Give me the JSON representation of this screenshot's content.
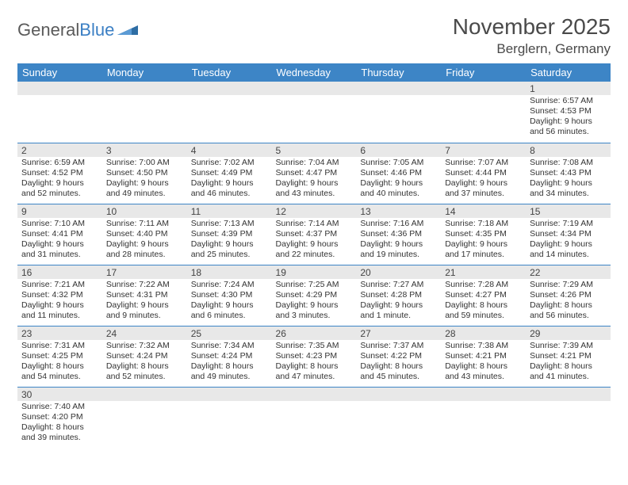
{
  "logo": {
    "text1": "General",
    "text2": "Blue"
  },
  "header": {
    "title": "November 2025",
    "location": "Berglern, Germany"
  },
  "colors": {
    "header_bg": "#3d85c6",
    "header_fg": "#ffffff",
    "daynum_bg": "#e8e8e8",
    "border": "#3d85c6",
    "logo_accent": "#2e6da4"
  },
  "weekdays": [
    "Sunday",
    "Monday",
    "Tuesday",
    "Wednesday",
    "Thursday",
    "Friday",
    "Saturday"
  ],
  "days": [
    {
      "n": 1,
      "sr": "6:57 AM",
      "ss": "4:53 PM",
      "dl": "9 hours and 56 minutes."
    },
    {
      "n": 2,
      "sr": "6:59 AM",
      "ss": "4:52 PM",
      "dl": "9 hours and 52 minutes."
    },
    {
      "n": 3,
      "sr": "7:00 AM",
      "ss": "4:50 PM",
      "dl": "9 hours and 49 minutes."
    },
    {
      "n": 4,
      "sr": "7:02 AM",
      "ss": "4:49 PM",
      "dl": "9 hours and 46 minutes."
    },
    {
      "n": 5,
      "sr": "7:04 AM",
      "ss": "4:47 PM",
      "dl": "9 hours and 43 minutes."
    },
    {
      "n": 6,
      "sr": "7:05 AM",
      "ss": "4:46 PM",
      "dl": "9 hours and 40 minutes."
    },
    {
      "n": 7,
      "sr": "7:07 AM",
      "ss": "4:44 PM",
      "dl": "9 hours and 37 minutes."
    },
    {
      "n": 8,
      "sr": "7:08 AM",
      "ss": "4:43 PM",
      "dl": "9 hours and 34 minutes."
    },
    {
      "n": 9,
      "sr": "7:10 AM",
      "ss": "4:41 PM",
      "dl": "9 hours and 31 minutes."
    },
    {
      "n": 10,
      "sr": "7:11 AM",
      "ss": "4:40 PM",
      "dl": "9 hours and 28 minutes."
    },
    {
      "n": 11,
      "sr": "7:13 AM",
      "ss": "4:39 PM",
      "dl": "9 hours and 25 minutes."
    },
    {
      "n": 12,
      "sr": "7:14 AM",
      "ss": "4:37 PM",
      "dl": "9 hours and 22 minutes."
    },
    {
      "n": 13,
      "sr": "7:16 AM",
      "ss": "4:36 PM",
      "dl": "9 hours and 19 minutes."
    },
    {
      "n": 14,
      "sr": "7:18 AM",
      "ss": "4:35 PM",
      "dl": "9 hours and 17 minutes."
    },
    {
      "n": 15,
      "sr": "7:19 AM",
      "ss": "4:34 PM",
      "dl": "9 hours and 14 minutes."
    },
    {
      "n": 16,
      "sr": "7:21 AM",
      "ss": "4:32 PM",
      "dl": "9 hours and 11 minutes."
    },
    {
      "n": 17,
      "sr": "7:22 AM",
      "ss": "4:31 PM",
      "dl": "9 hours and 9 minutes."
    },
    {
      "n": 18,
      "sr": "7:24 AM",
      "ss": "4:30 PM",
      "dl": "9 hours and 6 minutes."
    },
    {
      "n": 19,
      "sr": "7:25 AM",
      "ss": "4:29 PM",
      "dl": "9 hours and 3 minutes."
    },
    {
      "n": 20,
      "sr": "7:27 AM",
      "ss": "4:28 PM",
      "dl": "9 hours and 1 minute."
    },
    {
      "n": 21,
      "sr": "7:28 AM",
      "ss": "4:27 PM",
      "dl": "8 hours and 59 minutes."
    },
    {
      "n": 22,
      "sr": "7:29 AM",
      "ss": "4:26 PM",
      "dl": "8 hours and 56 minutes."
    },
    {
      "n": 23,
      "sr": "7:31 AM",
      "ss": "4:25 PM",
      "dl": "8 hours and 54 minutes."
    },
    {
      "n": 24,
      "sr": "7:32 AM",
      "ss": "4:24 PM",
      "dl": "8 hours and 52 minutes."
    },
    {
      "n": 25,
      "sr": "7:34 AM",
      "ss": "4:24 PM",
      "dl": "8 hours and 49 minutes."
    },
    {
      "n": 26,
      "sr": "7:35 AM",
      "ss": "4:23 PM",
      "dl": "8 hours and 47 minutes."
    },
    {
      "n": 27,
      "sr": "7:37 AM",
      "ss": "4:22 PM",
      "dl": "8 hours and 45 minutes."
    },
    {
      "n": 28,
      "sr": "7:38 AM",
      "ss": "4:21 PM",
      "dl": "8 hours and 43 minutes."
    },
    {
      "n": 29,
      "sr": "7:39 AM",
      "ss": "4:21 PM",
      "dl": "8 hours and 41 minutes."
    },
    {
      "n": 30,
      "sr": "7:40 AM",
      "ss": "4:20 PM",
      "dl": "8 hours and 39 minutes."
    }
  ],
  "labels": {
    "sunrise": "Sunrise:",
    "sunset": "Sunset:",
    "daylight": "Daylight:"
  },
  "layout": {
    "first_weekday_index": 6,
    "rows": 6,
    "cols": 7
  }
}
